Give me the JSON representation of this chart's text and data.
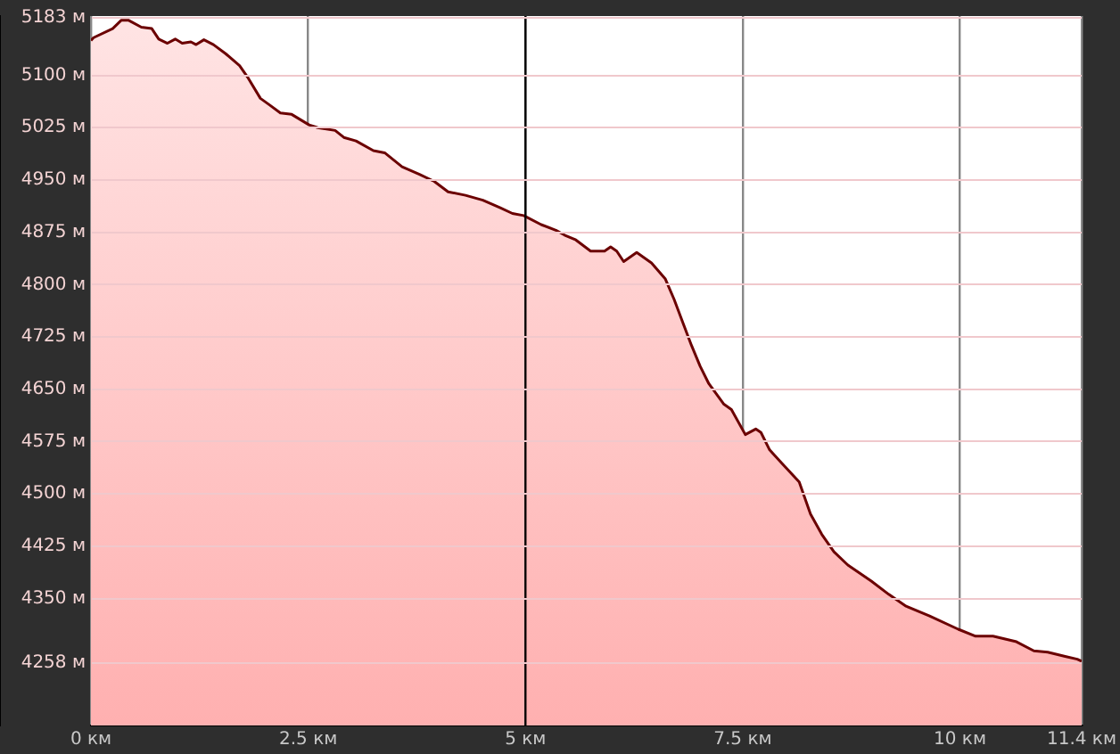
{
  "chart_data": {
    "type": "area",
    "x": [
      0,
      0.03,
      0.25,
      0.35,
      0.43,
      0.58,
      0.7,
      0.78,
      0.88,
      0.97,
      1.05,
      1.15,
      1.21,
      1.3,
      1.41,
      1.55,
      1.71,
      1.81,
      1.95,
      2.05,
      2.18,
      2.31,
      2.51,
      2.61,
      2.81,
      2.91,
      3.05,
      3.25,
      3.38,
      3.58,
      3.78,
      3.95,
      4.11,
      4.31,
      4.51,
      4.71,
      4.85,
      4.98,
      5.18,
      5.35,
      5.45,
      5.58,
      5.75,
      5.91,
      5.98,
      6.05,
      6.13,
      6.28,
      6.45,
      6.61,
      6.71,
      6.91,
      7.01,
      7.11,
      7.28,
      7.37,
      7.53,
      7.65,
      7.71,
      7.81,
      7.95,
      8.15,
      8.28,
      8.41,
      8.55,
      8.71,
      8.98,
      9.18,
      9.38,
      9.65,
      9.98,
      10.18,
      10.38,
      10.65,
      10.85,
      11.01,
      11.21,
      11.35,
      11.4
    ],
    "series": [
      {
        "color": "#6b0000",
        "values": [
          5150,
          5154,
          5167,
          5179,
          5179,
          5169,
          5167,
          5152,
          5146,
          5152,
          5146,
          5148,
          5144,
          5151,
          5144,
          5131,
          5114,
          5096,
          5067,
          5058,
          5046,
          5044,
          5029,
          5025,
          5021,
          5011,
          5006,
          4992,
          4989,
          4969,
          4958,
          4948,
          4933,
          4928,
          4921,
          4910,
          4902,
          4899,
          4886,
          4878,
          4871,
          4864,
          4848,
          4848,
          4854,
          4848,
          4833,
          4846,
          4831,
          4808,
          4779,
          4713,
          4683,
          4658,
          4629,
          4621,
          4585,
          4593,
          4588,
          4563,
          4544,
          4517,
          4471,
          4442,
          4417,
          4398,
          4375,
          4356,
          4339,
          4325,
          4306,
          4296,
          4296,
          4288,
          4275,
          4273,
          4267,
          4263,
          4260
        ]
      }
    ],
    "xlim": [
      0,
      11.4
    ],
    "xticks": [
      {
        "value": 0,
        "label": "0 км"
      },
      {
        "value": 2.5,
        "label": "2.5 км"
      },
      {
        "value": 5,
        "label": "5 км"
      },
      {
        "value": 7.5,
        "label": "7.5 км"
      },
      {
        "value": 10,
        "label": "10 км"
      },
      {
        "value": 11.4,
        "label": "11.4 км"
      }
    ],
    "ylim": [
      4168,
      5185
    ],
    "yticks": [
      {
        "value": 4258,
        "label": "4258 м"
      },
      {
        "value": 4350,
        "label": "4350 м"
      },
      {
        "value": 4425,
        "label": "4425 м"
      },
      {
        "value": 4500,
        "label": "4500 м"
      },
      {
        "value": 4575,
        "label": "4575 м"
      },
      {
        "value": 4650,
        "label": "4650 м"
      },
      {
        "value": 4725,
        "label": "4725 м"
      },
      {
        "value": 4800,
        "label": "4800 м"
      },
      {
        "value": 4875,
        "label": "4875 м"
      },
      {
        "value": 4950,
        "label": "4950 м"
      },
      {
        "value": 5025,
        "label": "5025 м"
      },
      {
        "value": 5100,
        "label": "5100 м"
      },
      {
        "value": 5183,
        "label": "5183 м"
      }
    ],
    "ref_lines": [
      {
        "axis": "x",
        "value": 5,
        "color": "#000000"
      }
    ],
    "grid": true,
    "legend": false
  }
}
